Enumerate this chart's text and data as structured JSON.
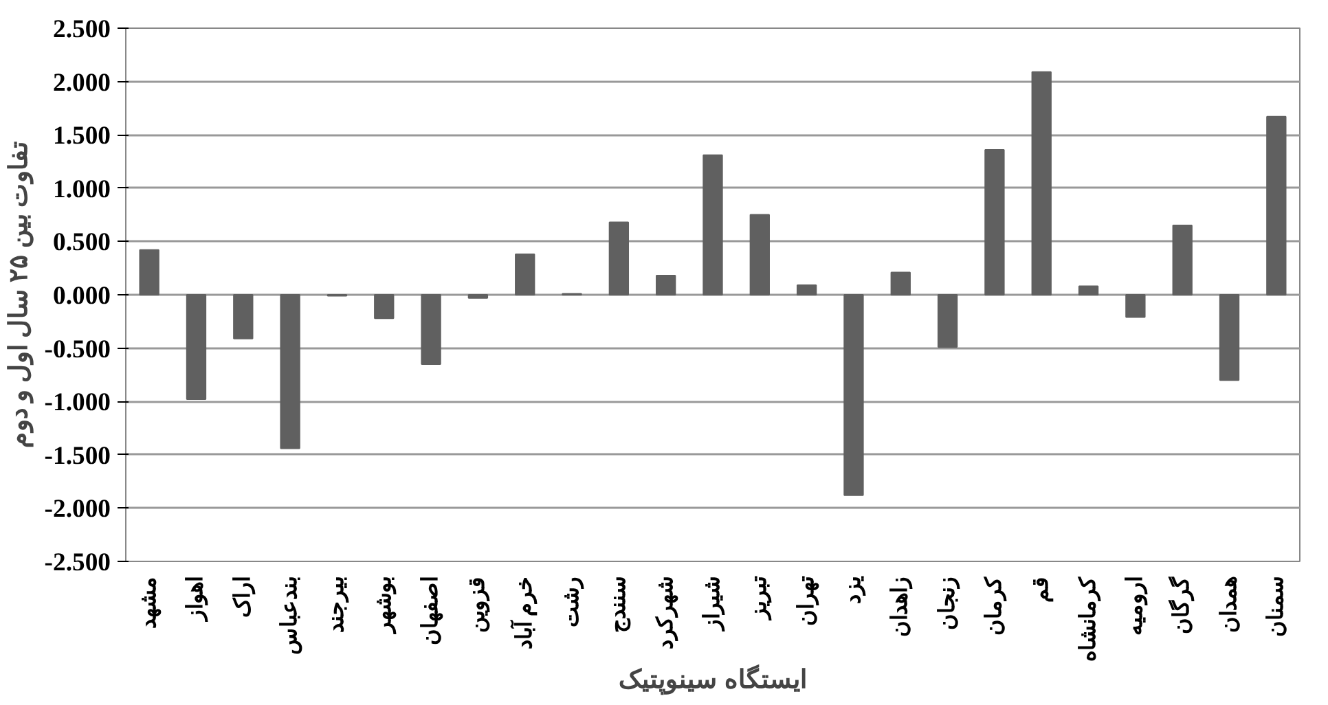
{
  "chart_data": {
    "type": "bar",
    "xlabel": "ایستگاه سینوپتیک",
    "ylabel": "تفاوت بین ۲۵ سال اول و دوم",
    "categories": [
      "مشهد",
      "اهواز",
      "اراک",
      "بندعباس",
      "بیرجند",
      "بوشهر",
      "اصفهان",
      "قزوین",
      "خرم آباد",
      "رشت",
      "سنندج",
      "شهرکرد",
      "شیراز",
      "تبریز",
      "تهران",
      "یزد",
      "زاهدان",
      "زنجان",
      "کرمان",
      "قم",
      "کرمانشاه",
      "ارومیه",
      "گرگان",
      "همدان",
      "سمنان"
    ],
    "values": [
      0.42,
      -0.98,
      -0.41,
      -1.44,
      -0.01,
      -0.22,
      -0.65,
      -0.03,
      0.38,
      0.01,
      0.68,
      0.18,
      1.31,
      0.75,
      0.09,
      -1.88,
      0.21,
      -0.49,
      1.36,
      2.09,
      0.08,
      -0.21,
      0.65,
      -0.8,
      1.67
    ],
    "color": "#606060",
    "ylim": [
      -2.5,
      2.5
    ],
    "yticks": [
      {
        "value": 2.5,
        "label": "2.500"
      },
      {
        "value": 2.0,
        "label": "2.000"
      },
      {
        "value": 1.5,
        "label": "1.500"
      },
      {
        "value": 1.0,
        "label": "1.000"
      },
      {
        "value": 0.5,
        "label": "0.500"
      },
      {
        "value": 0,
        "label": "0.000"
      },
      {
        "value": -0.5,
        "label": "-0.500"
      },
      {
        "value": -1.0,
        "label": "-1.000"
      },
      {
        "value": -1.5,
        "label": "-1.500"
      },
      {
        "value": -2.0,
        "label": "-2.000"
      },
      {
        "value": -2.5,
        "label": "-2.500"
      }
    ],
    "grid": "y"
  }
}
